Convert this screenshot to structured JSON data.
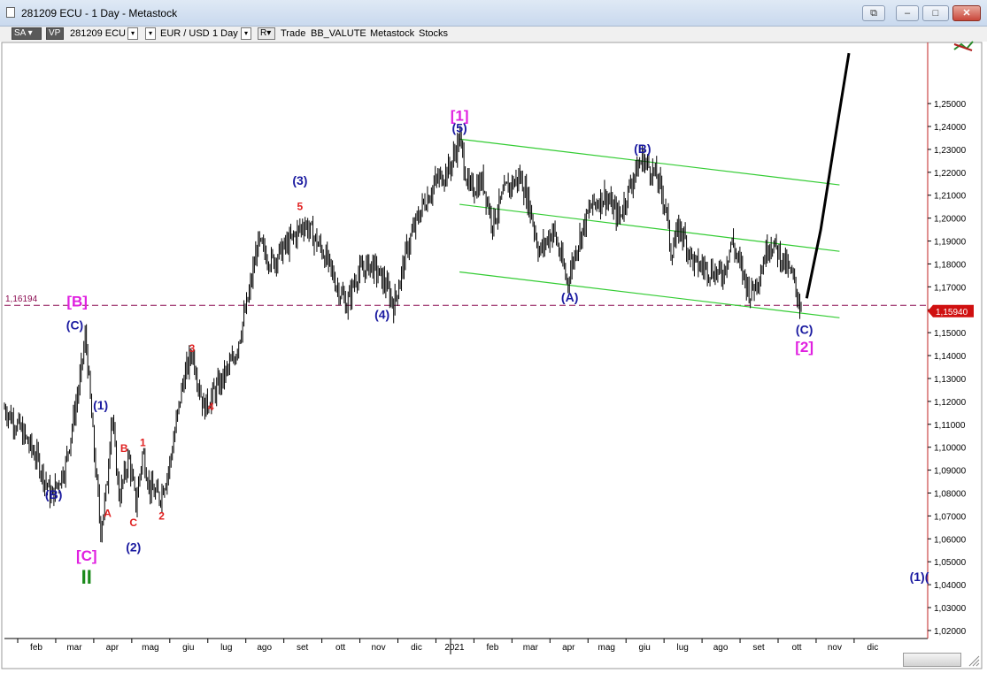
{
  "window": {
    "title": "281209 ECU - 1 Day - Metastock",
    "restore_label": "⧉",
    "minimize_label": "–",
    "maximize_label": "□",
    "close_label": "✕"
  },
  "toolbar": {
    "sa_label": "SA",
    "vp_label": "VP",
    "symbol": "281209 ECU",
    "pair": "EUR / USD",
    "period": "1 Day",
    "r_label": "R",
    "trade": "Trade",
    "indicator": "BB_VALUTE",
    "source": "Metastock",
    "market": "Stocks"
  },
  "chart_data": {
    "type": "bar",
    "instrument": "EUR / USD",
    "period": "1 Day",
    "ylim": [
      1.0165,
      1.2705
    ],
    "y_ticks": [
      "1,02000",
      "1,03000",
      "1,04000",
      "1,05000",
      "1,06000",
      "1,07000",
      "1,08000",
      "1,09000",
      "1,10000",
      "1,11000",
      "1,12000",
      "1,13000",
      "1,14000",
      "1,15000",
      "1,16000",
      "1,17000",
      "1,18000",
      "1,19000",
      "1,20000",
      "1,21000",
      "1,22000",
      "1,23000",
      "1,24000",
      "1,25000"
    ],
    "x_ticks": [
      "feb",
      "mar",
      "apr",
      "mag",
      "giu",
      "lug",
      "ago",
      "set",
      "ott",
      "nov",
      "dic",
      "2021",
      "feb",
      "mar",
      "apr",
      "mag",
      "giu",
      "lug",
      "ago",
      "set",
      "ott",
      "nov",
      "dic"
    ],
    "horizontal_line": {
      "value": 1.16194,
      "label": "1,16194",
      "color": "#8b0a50"
    },
    "last_price": {
      "value": 1.1594,
      "label": "1,15940",
      "color": "#d01010"
    },
    "price_path": [
      {
        "x": 0,
        "y": 1.117
      },
      {
        "x": 3,
        "y": 1.109
      },
      {
        "x": 7,
        "y": 1.095
      },
      {
        "x": 10,
        "y": 1.078
      },
      {
        "x": 13,
        "y": 1.092
      },
      {
        "x": 16,
        "y": 1.128
      },
      {
        "x": 17.3,
        "y": 1.149
      },
      {
        "x": 19,
        "y": 1.101
      },
      {
        "x": 20.5,
        "y": 1.064
      },
      {
        "x": 21.8,
        "y": 1.082
      },
      {
        "x": 22.8,
        "y": 1.115
      },
      {
        "x": 24.5,
        "y": 1.078
      },
      {
        "x": 26.5,
        "y": 1.096
      },
      {
        "x": 28,
        "y": 1.075
      },
      {
        "x": 29.5,
        "y": 1.098
      },
      {
        "x": 31,
        "y": 1.082
      },
      {
        "x": 33,
        "y": 1.078
      },
      {
        "x": 35,
        "y": 1.09
      },
      {
        "x": 38,
        "y": 1.128
      },
      {
        "x": 40,
        "y": 1.142
      },
      {
        "x": 42.5,
        "y": 1.117
      },
      {
        "x": 46,
        "y": 1.128
      },
      {
        "x": 49,
        "y": 1.139
      },
      {
        "x": 52,
        "y": 1.165
      },
      {
        "x": 54,
        "y": 1.189
      },
      {
        "x": 57,
        "y": 1.181
      },
      {
        "x": 61,
        "y": 1.19
      },
      {
        "x": 64,
        "y": 1.198
      },
      {
        "x": 68,
        "y": 1.185
      },
      {
        "x": 71,
        "y": 1.17
      },
      {
        "x": 73,
        "y": 1.162
      },
      {
        "x": 75,
        "y": 1.175
      },
      {
        "x": 78,
        "y": 1.18
      },
      {
        "x": 81,
        "y": 1.172
      },
      {
        "x": 83,
        "y": 1.162
      },
      {
        "x": 86,
        "y": 1.188
      },
      {
        "x": 89,
        "y": 1.205
      },
      {
        "x": 92,
        "y": 1.216
      },
      {
        "x": 95,
        "y": 1.222
      },
      {
        "x": 97,
        "y": 1.235
      },
      {
        "x": 99,
        "y": 1.212
      },
      {
        "x": 102,
        "y": 1.216
      },
      {
        "x": 104,
        "y": 1.198
      },
      {
        "x": 107,
        "y": 1.213
      },
      {
        "x": 110,
        "y": 1.218
      },
      {
        "x": 112,
        "y": 1.205
      },
      {
        "x": 114,
        "y": 1.185
      },
      {
        "x": 117,
        "y": 1.195
      },
      {
        "x": 120,
        "y": 1.172
      },
      {
        "x": 122,
        "y": 1.188
      },
      {
        "x": 125,
        "y": 1.205
      },
      {
        "x": 128,
        "y": 1.21
      },
      {
        "x": 131,
        "y": 1.2
      },
      {
        "x": 134,
        "y": 1.218
      },
      {
        "x": 136,
        "y": 1.226
      },
      {
        "x": 139,
        "y": 1.218
      },
      {
        "x": 141,
        "y": 1.205
      },
      {
        "x": 142,
        "y": 1.185
      },
      {
        "x": 144,
        "y": 1.196
      },
      {
        "x": 147,
        "y": 1.18
      },
      {
        "x": 150,
        "y": 1.178
      },
      {
        "x": 153,
        "y": 1.175
      },
      {
        "x": 155,
        "y": 1.19
      },
      {
        "x": 157,
        "y": 1.178
      },
      {
        "x": 159,
        "y": 1.167
      },
      {
        "x": 161,
        "y": 1.176
      },
      {
        "x": 163,
        "y": 1.19
      },
      {
        "x": 165,
        "y": 1.185
      },
      {
        "x": 168,
        "y": 1.174
      },
      {
        "x": 170,
        "y": 1.159
      }
    ],
    "projection": [
      {
        "x": 171,
        "y": 1.165
      },
      {
        "x": 174,
        "y": 1.195
      },
      {
        "x": 177,
        "y": 1.234
      },
      {
        "x": 180,
        "y": 1.272
      }
    ],
    "channel_lines": [
      {
        "from": {
          "x": 97,
          "y": 1.2345
        },
        "to": {
          "x": 178,
          "y": 1.2145
        },
        "color": "#33cc33"
      },
      {
        "from": {
          "x": 97,
          "y": 1.206
        },
        "to": {
          "x": 178,
          "y": 1.1855
        },
        "color": "#33cc33"
      },
      {
        "from": {
          "x": 97,
          "y": 1.1765
        },
        "to": {
          "x": 178,
          "y": 1.1565
        },
        "color": "#33cc33"
      }
    ],
    "annotations": [
      {
        "text": "[1]",
        "x": 97,
        "y": 1.2425,
        "color": "#e020e0",
        "size": 17,
        "bold": true
      },
      {
        "text": "(5)",
        "x": 97,
        "y": 1.2375,
        "color": "#1a1aa0",
        "size": 14,
        "bold": true
      },
      {
        "text": "(B)",
        "x": 136,
        "y": 1.2285,
        "color": "#1a1aa0",
        "size": 14,
        "bold": true
      },
      {
        "text": "(3)",
        "x": 63,
        "y": 1.2145,
        "color": "#1a1aa0",
        "size": 14,
        "bold": true
      },
      {
        "text": "5",
        "x": 63,
        "y": 1.2035,
        "color": "#e02020",
        "size": 12,
        "bold": true
      },
      {
        "text": "(4)",
        "x": 80.5,
        "y": 1.156,
        "color": "#1a1aa0",
        "size": 14,
        "bold": true
      },
      {
        "text": "(A)",
        "x": 120.5,
        "y": 1.1635,
        "color": "#1a1aa0",
        "size": 14,
        "bold": true
      },
      {
        "text": "[B]",
        "x": 15.5,
        "y": 1.1615,
        "color": "#e020e0",
        "size": 17,
        "bold": true
      },
      {
        "text": "(C)",
        "x": 15,
        "y": 1.1515,
        "color": "#1a1aa0",
        "size": 14,
        "bold": true
      },
      {
        "text": "(C)",
        "x": 170.5,
        "y": 1.1495,
        "color": "#1a1aa0",
        "size": 14,
        "bold": true
      },
      {
        "text": "[2]",
        "x": 170.5,
        "y": 1.1415,
        "color": "#e020e0",
        "size": 17,
        "bold": true
      },
      {
        "text": "3",
        "x": 40,
        "y": 1.1415,
        "color": "#e02020",
        "size": 12,
        "bold": true
      },
      {
        "text": "4",
        "x": 44,
        "y": 1.116,
        "color": "#e02020",
        "size": 12,
        "bold": true
      },
      {
        "text": "(1)",
        "x": 20.5,
        "y": 1.1165,
        "color": "#1a1aa0",
        "size": 14,
        "bold": true
      },
      {
        "text": "B",
        "x": 25.5,
        "y": 1.098,
        "color": "#e02020",
        "size": 12,
        "bold": true
      },
      {
        "text": "1",
        "x": 29.5,
        "y": 1.1005,
        "color": "#e02020",
        "size": 12,
        "bold": true
      },
      {
        "text": "(B)",
        "x": 10.5,
        "y": 1.0775,
        "color": "#1a1aa0",
        "size": 14,
        "bold": true
      },
      {
        "text": "A",
        "x": 22,
        "y": 1.0695,
        "color": "#e02020",
        "size": 12,
        "bold": true
      },
      {
        "text": "C",
        "x": 27.5,
        "y": 1.0655,
        "color": "#e02020",
        "size": 12,
        "bold": true
      },
      {
        "text": "2",
        "x": 33.5,
        "y": 1.0685,
        "color": "#e02020",
        "size": 12,
        "bold": true
      },
      {
        "text": "(2)",
        "x": 27.5,
        "y": 1.0545,
        "color": "#1a1aa0",
        "size": 14,
        "bold": true
      },
      {
        "text": "[C]",
        "x": 17.5,
        "y": 1.0505,
        "color": "#e020e0",
        "size": 17,
        "bold": true
      },
      {
        "text": "II",
        "x": 17.5,
        "y": 1.0405,
        "color": "#1b8a1b",
        "size": 22,
        "bold": true
      },
      {
        "text": "(1)(",
        "x": 195,
        "y": 1.0415,
        "color": "#1a1aa0",
        "size": 14,
        "bold": true
      }
    ]
  }
}
